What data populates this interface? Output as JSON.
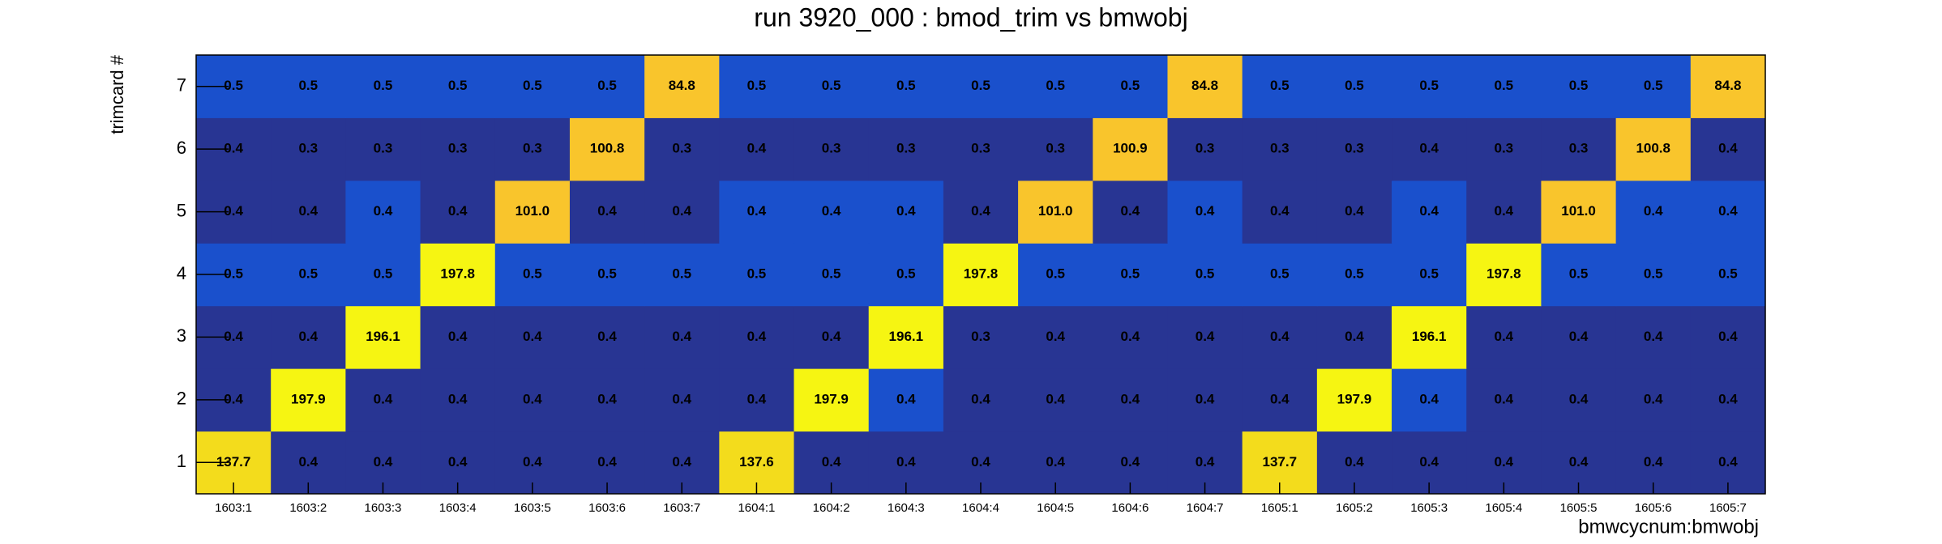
{
  "chart_data": {
    "type": "heatmap",
    "title": "run 3920_000 : bmod_trim vs bmwobj",
    "x_label": "bmwcycnum:bmwobj",
    "y_label": "trimcard #",
    "categories": [
      "1603:1",
      "1603:2",
      "1603:3",
      "1603:4",
      "1603:5",
      "1603:6",
      "1603:7",
      "1604:1",
      "1604:2",
      "1604:3",
      "1604:4",
      "1604:5",
      "1604:6",
      "1604:7",
      "1605:1",
      "1605:2",
      "1605:3",
      "1605:4",
      "1605:5",
      "1605:6",
      "1605:7"
    ],
    "color_levels": [
      0,
      0.42,
      50,
      120,
      190
    ],
    "palette": [
      "#283593",
      "#1a50cc",
      "#f9c52c",
      "#f3dc1c",
      "#f6f512"
    ],
    "series": [
      {
        "name": "1",
        "values": [
          137.7,
          0.4,
          0.4,
          0.4,
          0.4,
          0.4,
          0.4,
          137.6,
          0.4,
          0.4,
          0.4,
          0.4,
          0.4,
          0.4,
          137.7,
          0.4,
          0.4,
          0.4,
          0.4,
          0.4,
          0.4
        ]
      },
      {
        "name": "2",
        "values": [
          0.4,
          197.9,
          0.4,
          0.4,
          0.4,
          0.4,
          0.4,
          0.4,
          197.9,
          0.44,
          0.4,
          0.4,
          0.4,
          0.4,
          0.4,
          197.9,
          0.44,
          0.4,
          0.4,
          0.4,
          0.4
        ],
        "value_labels": [
          "0.4",
          "197.9",
          "0.4",
          "0.4",
          "0.4",
          "0.4",
          "0.4",
          "0.4",
          "197.9",
          "0.4",
          "0.4",
          "0.4",
          "0.4",
          "0.4",
          "0.4",
          "197.9",
          "0.4",
          "0.4",
          "0.4",
          "0.4",
          "0.4"
        ]
      },
      {
        "name": "3",
        "values": [
          0.4,
          0.4,
          196.1,
          0.4,
          0.4,
          0.4,
          0.4,
          0.4,
          0.4,
          196.1,
          0.3,
          0.4,
          0.4,
          0.4,
          0.4,
          0.4,
          196.1,
          0.4,
          0.4,
          0.4,
          0.4
        ]
      },
      {
        "name": "4",
        "values": [
          0.5,
          0.5,
          0.5,
          197.8,
          0.5,
          0.5,
          0.5,
          0.5,
          0.5,
          0.5,
          197.8,
          0.5,
          0.5,
          0.5,
          0.5,
          0.5,
          0.5,
          197.8,
          0.5,
          0.5,
          0.5
        ]
      },
      {
        "name": "5",
        "values": [
          0.4,
          0.4,
          0.44,
          0.4,
          101,
          0.4,
          0.4,
          0.44,
          0.44,
          0.44,
          0.4,
          101,
          0.4,
          0.44,
          0.4,
          0.4,
          0.44,
          0.4,
          101,
          0.44,
          0.44
        ],
        "value_labels": [
          "0.4",
          "0.4",
          "0.4",
          "0.4",
          "101.0",
          "0.4",
          "0.4",
          "0.4",
          "0.4",
          "0.4",
          "0.4",
          "101.0",
          "0.4",
          "0.4",
          "0.4",
          "0.4",
          "0.4",
          "0.4",
          "101.0",
          "0.4",
          "0.4"
        ]
      },
      {
        "name": "6",
        "values": [
          0.4,
          0.3,
          0.3,
          0.3,
          0.3,
          100.8,
          0.3,
          0.4,
          0.3,
          0.3,
          0.3,
          0.3,
          100.9,
          0.3,
          0.3,
          0.3,
          0.4,
          0.3,
          0.3,
          100.8,
          0.4
        ]
      },
      {
        "name": "7",
        "values": [
          0.5,
          0.5,
          0.5,
          0.5,
          0.5,
          0.5,
          84.8,
          0.5,
          0.5,
          0.5,
          0.5,
          0.5,
          0.5,
          84.8,
          0.5,
          0.5,
          0.5,
          0.5,
          0.5,
          0.5,
          84.8
        ]
      }
    ]
  }
}
